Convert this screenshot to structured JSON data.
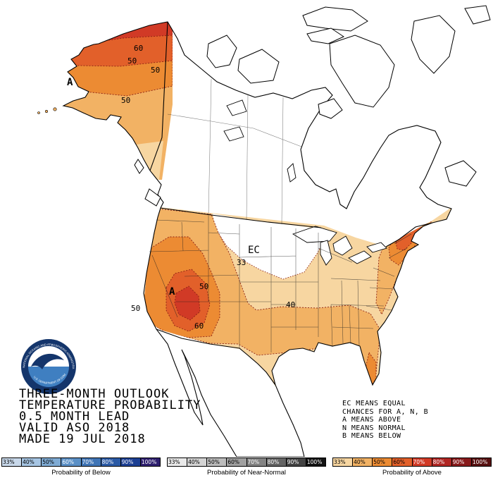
{
  "title_block": {
    "lines": [
      "THREE-MONTH OUTLOOK",
      "TEMPERATURE PROBABILITY",
      "0.5 MONTH LEAD",
      "VALID ASO 2018",
      "MADE 19 JUL 2018"
    ]
  },
  "legend_block": {
    "lines": [
      "EC MEANS EQUAL",
      "CHANCES FOR A, N, B",
      "A MEANS ABOVE",
      "N MEANS NORMAL",
      "B MEANS BELOW"
    ]
  },
  "noaa_logo": {
    "ring_text_top": "NATIONAL OCEANIC AND ATMOSPHERIC ADMINISTRATION",
    "ring_text_bottom": "U.S. DEPARTMENT OF COMMERCE"
  },
  "map": {
    "contour_colors": {
      "p33": "#f7d6a1",
      "p40": "#f2b264",
      "p50": "#ec8b33",
      "p60": "#e2602a",
      "p70": "#d13a26",
      "ec": "#ffffff",
      "line": "#8b2015"
    },
    "labels": [
      {
        "text": "60"
      },
      {
        "text": "50"
      },
      {
        "text": "50"
      },
      {
        "text": "A"
      },
      {
        "text": "50"
      },
      {
        "text": "EC"
      },
      {
        "text": "33"
      },
      {
        "text": "50"
      },
      {
        "text": "A"
      },
      {
        "text": "40"
      },
      {
        "text": "60"
      },
      {
        "text": "50"
      }
    ]
  },
  "colorbars": [
    {
      "label": "Probability of Below",
      "ticks": [
        "33%",
        "40%",
        "50%",
        "60%",
        "70%",
        "80%",
        "90%",
        "100%"
      ],
      "colors": [
        "#c8d8ea",
        "#a6c5e3",
        "#7fabd4",
        "#5b90c6",
        "#3f74b5",
        "#2b5aa5",
        "#1c3f93",
        "#2e1f6e"
      ],
      "label_colors": [
        "#000",
        "#000",
        "#000",
        "#fff",
        "#fff",
        "#fff",
        "#fff",
        "#fff"
      ]
    },
    {
      "label": "Probability of Near-Normal",
      "ticks": [
        "33%",
        "40%",
        "50%",
        "60%",
        "70%",
        "80%",
        "90%",
        "100%"
      ],
      "colors": [
        "#e9e9e9",
        "#d3d3d3",
        "#bcbcbc",
        "#a0a0a0",
        "#838383",
        "#646464",
        "#434343",
        "#131313"
      ],
      "label_colors": [
        "#000",
        "#000",
        "#000",
        "#000",
        "#fff",
        "#fff",
        "#fff",
        "#fff"
      ]
    },
    {
      "label": "Probability of Above",
      "ticks": [
        "33%",
        "40%",
        "50%",
        "60%",
        "70%",
        "80%",
        "90%",
        "100%"
      ],
      "colors": [
        "#f7d6a1",
        "#f2b264",
        "#ec8b33",
        "#e2602a",
        "#d13a26",
        "#b02623",
        "#871a1b",
        "#571111"
      ],
      "label_colors": [
        "#000",
        "#000",
        "#000",
        "#000",
        "#fff",
        "#fff",
        "#fff",
        "#fff"
      ]
    }
  ]
}
